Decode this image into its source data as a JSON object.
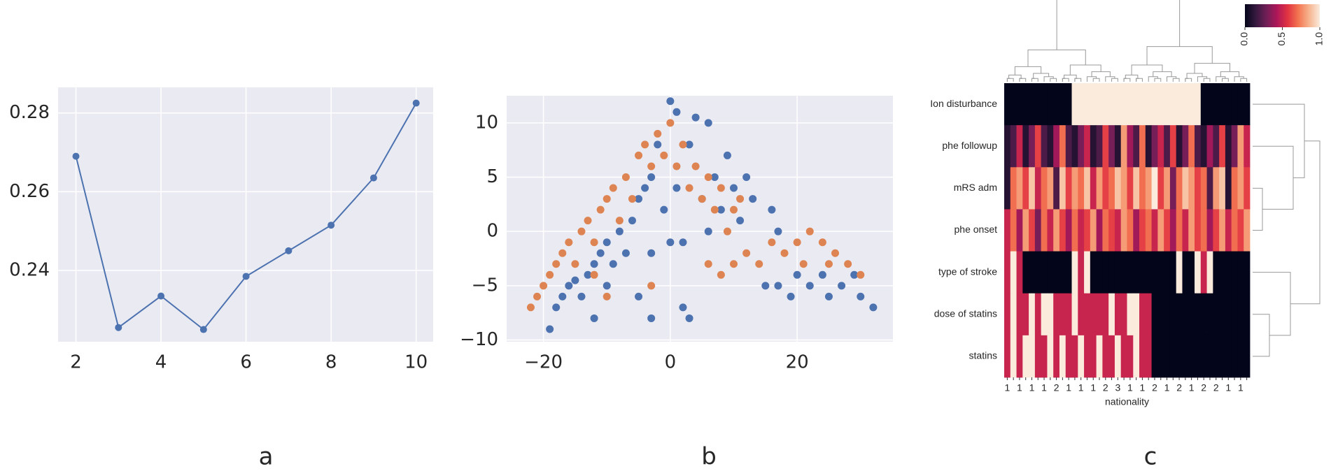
{
  "chart_data": [
    {
      "type": "line",
      "caption": "a",
      "x": [
        2,
        3,
        4,
        5,
        6,
        7,
        8,
        9,
        10
      ],
      "series": [
        {
          "color": "#4c72b0",
          "values": [
            0.269,
            0.2255,
            0.2335,
            0.225,
            0.2385,
            0.245,
            0.2515,
            0.2635,
            0.2825
          ]
        }
      ],
      "xlim": [
        1.58,
        10.4
      ],
      "ylim": [
        0.2219,
        0.2865
      ],
      "xticks": [
        2,
        4,
        6,
        8,
        10
      ],
      "yticks": [
        0.24,
        0.26,
        0.28
      ],
      "grid": true,
      "background": "#eaeaf2"
    },
    {
      "type": "scatter",
      "caption": "b",
      "series": [
        {
          "color": "#4c72b0",
          "x": [
            -19,
            -18,
            -17,
            -16,
            -15,
            -14,
            -13,
            -12,
            -12,
            -11,
            -10,
            -9,
            -8,
            -7,
            -6,
            -5,
            -5,
            -4,
            -3,
            -3,
            -2,
            -1,
            0,
            0,
            1,
            1,
            2,
            2,
            3,
            4,
            5,
            6,
            6,
            7,
            8,
            9,
            10,
            11,
            12,
            13,
            16,
            17,
            15,
            17,
            19,
            20,
            22,
            24,
            25,
            27,
            29,
            30,
            32,
            -3,
            3,
            -10
          ],
          "values": [
            -9,
            -7,
            -6,
            -5,
            -4.5,
            -6,
            -4,
            -8,
            -3,
            -2,
            -1,
            -3,
            0,
            -2,
            1,
            -6,
            3,
            4,
            5,
            -2,
            8,
            2,
            12,
            -1,
            11,
            4,
            -1,
            -7,
            8,
            10.5,
            3,
            10,
            0,
            5,
            2,
            7,
            4,
            1,
            5,
            3,
            2,
            0,
            -5,
            -5,
            -6,
            -4,
            -5,
            -4,
            -6,
            -5,
            -4,
            -6,
            -7,
            -8,
            -8,
            -5
          ]
        },
        {
          "color": "#dd8452",
          "x": [
            -22,
            -21,
            -20,
            -19,
            -18,
            -17,
            -16,
            -15,
            -14,
            -13,
            -12,
            -11,
            -10,
            -9,
            -8,
            -7,
            -6,
            -5,
            -4,
            -3,
            -2,
            -1,
            0,
            1,
            2,
            3,
            4,
            5,
            6,
            7,
            8,
            9,
            10,
            11,
            -10,
            -3,
            6,
            8,
            10,
            12,
            14,
            16,
            18,
            20,
            22,
            24,
            26,
            28,
            30,
            21,
            25,
            -12
          ],
          "values": [
            -7,
            -6,
            -5,
            -4,
            -3,
            -2,
            -1,
            -3,
            0,
            1,
            -1,
            2,
            3,
            4,
            1,
            5,
            3,
            7,
            8,
            6,
            9,
            7,
            10,
            6,
            8,
            4,
            6,
            3,
            5,
            2,
            4,
            0,
            2,
            3,
            -6,
            -5,
            -3,
            -4,
            -3,
            -2,
            -3,
            -1,
            -2,
            -1,
            0,
            -1,
            -2,
            -3,
            -4,
            -3,
            -3,
            -4
          ]
        }
      ],
      "xlim": [
        -25.8,
        35.1
      ],
      "ylim": [
        -10.16,
        12.5
      ],
      "xticks": [
        {
          "value": -20,
          "label": "−20"
        },
        0,
        20
      ],
      "yticks": [
        {
          "value": -10,
          "label": "−10"
        },
        {
          "value": -5,
          "label": "−5"
        },
        0,
        5,
        10
      ],
      "grid": true,
      "background": "#eaeaf2"
    },
    {
      "type": "heatmap",
      "caption": "c",
      "xlabel": "nationality",
      "rows": [
        "Ion disturbance",
        "phe followup",
        "mRS adm",
        "phe onset",
        "type of stroke",
        "dose of statins",
        "statins"
      ],
      "categories": [
        "1",
        null,
        "1",
        null,
        "1",
        null,
        "1",
        null,
        "2",
        null,
        "1",
        null,
        "1",
        null,
        "1",
        null,
        "2",
        null,
        "3",
        null,
        "1",
        null,
        "1",
        null,
        "2",
        null,
        "1",
        null,
        "2",
        null,
        "1",
        null,
        "2",
        null,
        "2",
        null,
        "1",
        null,
        "1",
        null
      ],
      "values": [
        [
          0,
          0,
          0,
          0,
          0,
          0,
          0,
          0,
          0,
          0,
          0,
          1,
          1,
          1,
          1,
          1,
          1,
          1,
          1,
          1,
          1,
          1,
          1,
          1,
          1,
          1,
          1,
          1,
          1,
          1,
          1,
          1,
          0,
          0,
          0,
          0,
          0,
          0,
          0,
          0
        ],
        [
          0.1,
          0.2,
          0.5,
          0.1,
          0.3,
          0.6,
          0.2,
          0.1,
          0.4,
          0.7,
          0.2,
          0.1,
          0.3,
          0.5,
          0.1,
          0.2,
          0.6,
          0.3,
          0.1,
          0.8,
          0.4,
          0.2,
          0.7,
          0.1,
          0.3,
          0.5,
          0.2,
          0.6,
          0.1,
          0.3,
          0.7,
          0.2,
          0.1,
          0.4,
          0.2,
          0.6,
          0.1,
          0.3,
          0.8,
          0.5
        ],
        [
          0.1,
          0.7,
          0.8,
          0.6,
          0.9,
          0.5,
          0.7,
          0.8,
          0.2,
          0.9,
          0.6,
          0.8,
          0.7,
          0.9,
          0.5,
          0.8,
          0.6,
          0.7,
          0.9,
          0.8,
          0.6,
          0.9,
          0.7,
          0.8,
          1,
          0.6,
          0.8,
          0.3,
          0.7,
          0.9,
          0.8,
          0.6,
          0.7,
          0.2,
          0.8,
          0.9,
          0.1,
          0.7,
          0.8,
          0.6
        ],
        [
          0.5,
          0.7,
          0.4,
          0.8,
          0.6,
          0.3,
          0.7,
          0.5,
          0.8,
          0.6,
          0.4,
          0.7,
          0.5,
          0.6,
          0.8,
          0.4,
          0.7,
          0.6,
          0.5,
          0.8,
          0.7,
          0.4,
          0.6,
          0.7,
          0.5,
          0.8,
          0.6,
          0.4,
          0.7,
          0.5,
          0.8,
          0.6,
          0.7,
          0.4,
          0.6,
          0.8,
          0.5,
          0.7,
          0.6,
          0.8
        ],
        [
          0.5,
          1,
          0.5,
          0,
          0,
          0,
          0,
          0,
          0,
          0,
          0,
          1,
          0.5,
          1,
          0,
          0,
          0,
          0,
          0,
          0,
          0,
          0,
          0,
          0,
          0,
          0,
          0,
          0,
          1,
          0,
          0,
          1,
          0.5,
          1,
          0,
          0,
          0,
          0,
          0,
          0
        ],
        [
          0.5,
          1,
          0.5,
          0.5,
          1,
          0.5,
          1,
          1,
          0.5,
          0.5,
          0.5,
          1,
          0.5,
          0.5,
          0.5,
          0.5,
          0.5,
          1,
          0.5,
          0.5,
          1,
          1,
          0.5,
          0.5,
          0,
          0,
          0,
          0,
          0,
          0,
          0,
          0,
          0,
          0,
          0,
          0,
          0,
          0,
          0,
          0
        ],
        [
          0.5,
          1,
          0.5,
          1,
          1,
          0.5,
          0.5,
          1,
          0.5,
          1,
          0.5,
          0.5,
          1,
          0.5,
          0.5,
          1,
          0.5,
          0.5,
          1,
          0.5,
          0.5,
          1,
          0.5,
          0.5,
          0,
          0,
          0,
          0,
          0,
          0,
          0,
          0,
          0,
          0,
          0,
          0,
          0,
          0,
          0,
          0
        ]
      ],
      "clim": [
        0,
        1
      ],
      "colors": [
        "#03051a",
        "#35193e",
        "#701f57",
        "#ae1759",
        "#e13342",
        "#f37651",
        "#f6b48f",
        "#faebdd"
      ],
      "cbar_ticks": [
        {
          "value": 0,
          "label": "0.0"
        },
        {
          "value": 0.5,
          "label": "0.5"
        },
        {
          "value": 1,
          "label": "1.0"
        }
      ]
    }
  ]
}
